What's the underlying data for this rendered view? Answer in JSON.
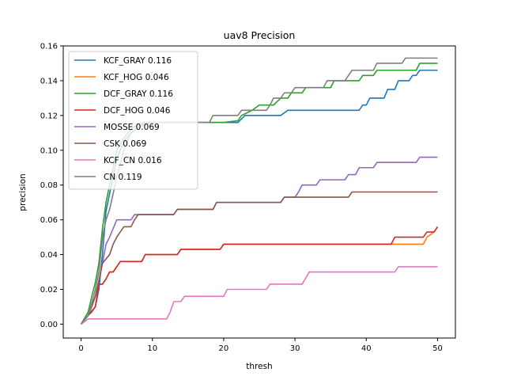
{
  "chart_data": {
    "type": "line",
    "title": "uav8 Precision",
    "xlabel": "thresh",
    "ylabel": "precision",
    "xlim": [
      -2.5,
      52.5
    ],
    "ylim": [
      -0.008,
      0.16
    ],
    "xticks": [
      0,
      10,
      20,
      30,
      40,
      50
    ],
    "yticks": [
      0.0,
      0.02,
      0.04,
      0.06,
      0.08,
      0.1,
      0.12,
      0.14,
      0.16
    ],
    "xtick_labels": [
      "0",
      "10",
      "20",
      "30",
      "40",
      "50"
    ],
    "ytick_labels": [
      "0.00",
      "0.02",
      "0.04",
      "0.06",
      "0.08",
      "0.10",
      "0.12",
      "0.14",
      "0.16"
    ],
    "grid": false,
    "legend_position": "top-left",
    "series": [
      {
        "name": "KCF_GRAY 0.116",
        "color": "#1f77b4",
        "points": [
          [
            0,
            0
          ],
          [
            1,
            0.005
          ],
          [
            1.5,
            0.007
          ],
          [
            2,
            0.01
          ],
          [
            2.5,
            0.02
          ],
          [
            3,
            0.04
          ],
          [
            3.5,
            0.065
          ],
          [
            4,
            0.075
          ],
          [
            4.5,
            0.085
          ],
          [
            5,
            0.095
          ],
          [
            6,
            0.105
          ],
          [
            7,
            0.11
          ],
          [
            8,
            0.113
          ],
          [
            9,
            0.115
          ],
          [
            10,
            0.116
          ],
          [
            22,
            0.116
          ],
          [
            23,
            0.12
          ],
          [
            28,
            0.12
          ],
          [
            29,
            0.123
          ],
          [
            39,
            0.123
          ],
          [
            39.5,
            0.126
          ],
          [
            40,
            0.126
          ],
          [
            40.5,
            0.13
          ],
          [
            42.5,
            0.13
          ],
          [
            43,
            0.135
          ],
          [
            44,
            0.135
          ],
          [
            44.5,
            0.14
          ],
          [
            46,
            0.14
          ],
          [
            46.5,
            0.143
          ],
          [
            47,
            0.143
          ],
          [
            47.5,
            0.146
          ],
          [
            50,
            0.146
          ]
        ]
      },
      {
        "name": "KCF_HOG 0.046",
        "color": "#ff7f0e",
        "points": [
          [
            0,
            0
          ],
          [
            1,
            0.005
          ],
          [
            2,
            0.01
          ],
          [
            2.5,
            0.023
          ],
          [
            3,
            0.023
          ],
          [
            3.5,
            0.026
          ],
          [
            4,
            0.03
          ],
          [
            4.5,
            0.03
          ],
          [
            5,
            0.033
          ],
          [
            5.5,
            0.036
          ],
          [
            8.5,
            0.036
          ],
          [
            9,
            0.04
          ],
          [
            13.5,
            0.04
          ],
          [
            14,
            0.043
          ],
          [
            19.5,
            0.043
          ],
          [
            20,
            0.046
          ],
          [
            48,
            0.046
          ],
          [
            48.5,
            0.05
          ],
          [
            49.5,
            0.053
          ],
          [
            50,
            0.056
          ]
        ]
      },
      {
        "name": "DCF_GRAY 0.116",
        "color": "#2ca02c",
        "points": [
          [
            0,
            0
          ],
          [
            1,
            0.007
          ],
          [
            1.5,
            0.016
          ],
          [
            2,
            0.024
          ],
          [
            2.5,
            0.035
          ],
          [
            3,
            0.055
          ],
          [
            3.5,
            0.07
          ],
          [
            4,
            0.08
          ],
          [
            4.5,
            0.09
          ],
          [
            5,
            0.1
          ],
          [
            6,
            0.107
          ],
          [
            7,
            0.112
          ],
          [
            8,
            0.115
          ],
          [
            9,
            0.116
          ],
          [
            20,
            0.116
          ],
          [
            22,
            0.117
          ],
          [
            22.5,
            0.12
          ],
          [
            24,
            0.123
          ],
          [
            25,
            0.126
          ],
          [
            27,
            0.126
          ],
          [
            28,
            0.13
          ],
          [
            29,
            0.13
          ],
          [
            29.5,
            0.133
          ],
          [
            31,
            0.133
          ],
          [
            31.5,
            0.136
          ],
          [
            35,
            0.136
          ],
          [
            35.5,
            0.14
          ],
          [
            39,
            0.14
          ],
          [
            39.5,
            0.143
          ],
          [
            41,
            0.143
          ],
          [
            41.5,
            0.146
          ],
          [
            47,
            0.146
          ],
          [
            47.5,
            0.15
          ],
          [
            50,
            0.15
          ]
        ]
      },
      {
        "name": "DCF_HOG 0.046",
        "color": "#d62728",
        "points": [
          [
            0,
            0
          ],
          [
            1,
            0.005
          ],
          [
            2,
            0.01
          ],
          [
            2.5,
            0.023
          ],
          [
            3,
            0.023
          ],
          [
            3.5,
            0.026
          ],
          [
            4,
            0.03
          ],
          [
            4.5,
            0.03
          ],
          [
            5,
            0.033
          ],
          [
            5.5,
            0.036
          ],
          [
            8.5,
            0.036
          ],
          [
            9,
            0.04
          ],
          [
            13.5,
            0.04
          ],
          [
            14,
            0.043
          ],
          [
            19.5,
            0.043
          ],
          [
            20,
            0.046
          ],
          [
            43.5,
            0.046
          ],
          [
            44,
            0.05
          ],
          [
            48,
            0.05
          ],
          [
            48.5,
            0.053
          ],
          [
            49.5,
            0.053
          ],
          [
            50,
            0.056
          ]
        ]
      },
      {
        "name": "MOSSE 0.069",
        "color": "#9467bd",
        "points": [
          [
            0,
            0
          ],
          [
            1,
            0.005
          ],
          [
            1.5,
            0.01
          ],
          [
            2,
            0.016
          ],
          [
            2.5,
            0.025
          ],
          [
            3,
            0.035
          ],
          [
            3.5,
            0.046
          ],
          [
            4,
            0.05
          ],
          [
            4.5,
            0.055
          ],
          [
            5,
            0.06
          ],
          [
            7,
            0.06
          ],
          [
            7.5,
            0.063
          ],
          [
            13,
            0.063
          ],
          [
            13.5,
            0.066
          ],
          [
            18.5,
            0.066
          ],
          [
            19,
            0.07
          ],
          [
            28,
            0.07
          ],
          [
            28.5,
            0.073
          ],
          [
            30,
            0.073
          ],
          [
            30.5,
            0.076
          ],
          [
            31,
            0.08
          ],
          [
            33,
            0.08
          ],
          [
            33.5,
            0.083
          ],
          [
            37,
            0.083
          ],
          [
            37.5,
            0.086
          ],
          [
            38.5,
            0.086
          ],
          [
            39,
            0.09
          ],
          [
            41,
            0.09
          ],
          [
            41.5,
            0.093
          ],
          [
            47,
            0.093
          ],
          [
            47.5,
            0.096
          ],
          [
            50,
            0.096
          ]
        ]
      },
      {
        "name": "CSK 0.069",
        "color": "#8c564b",
        "points": [
          [
            0,
            0
          ],
          [
            1,
            0.005
          ],
          [
            2,
            0.016
          ],
          [
            2.5,
            0.025
          ],
          [
            3,
            0.035
          ],
          [
            4,
            0.04
          ],
          [
            4.5,
            0.046
          ],
          [
            5,
            0.05
          ],
          [
            6,
            0.056
          ],
          [
            7,
            0.056
          ],
          [
            7.5,
            0.06
          ],
          [
            8,
            0.063
          ],
          [
            13,
            0.063
          ],
          [
            13.5,
            0.066
          ],
          [
            18.5,
            0.066
          ],
          [
            19,
            0.07
          ],
          [
            28,
            0.07
          ],
          [
            28.5,
            0.073
          ],
          [
            37.5,
            0.073
          ],
          [
            38,
            0.076
          ],
          [
            50,
            0.076
          ]
        ]
      },
      {
        "name": "KCF_CN 0.016",
        "color": "#e377c2",
        "points": [
          [
            0,
            0
          ],
          [
            1,
            0.003
          ],
          [
            12,
            0.003
          ],
          [
            12.5,
            0.007
          ],
          [
            13,
            0.013
          ],
          [
            14,
            0.013
          ],
          [
            14.5,
            0.016
          ],
          [
            20,
            0.016
          ],
          [
            20.5,
            0.02
          ],
          [
            26,
            0.02
          ],
          [
            26.5,
            0.023
          ],
          [
            31,
            0.023
          ],
          [
            32,
            0.03
          ],
          [
            44,
            0.03
          ],
          [
            44.5,
            0.033
          ],
          [
            50,
            0.033
          ]
        ]
      },
      {
        "name": "CN 0.119",
        "color": "#7f7f7f",
        "points": [
          [
            0,
            0
          ],
          [
            1,
            0.005
          ],
          [
            1.5,
            0.012
          ],
          [
            2,
            0.02
          ],
          [
            2.5,
            0.03
          ],
          [
            3,
            0.05
          ],
          [
            3.5,
            0.06
          ],
          [
            4,
            0.066
          ],
          [
            4.5,
            0.075
          ],
          [
            5,
            0.085
          ],
          [
            6,
            0.1
          ],
          [
            7,
            0.11
          ],
          [
            8,
            0.113
          ],
          [
            9,
            0.116
          ],
          [
            18,
            0.116
          ],
          [
            18.5,
            0.12
          ],
          [
            22,
            0.12
          ],
          [
            22.5,
            0.123
          ],
          [
            26,
            0.123
          ],
          [
            26.5,
            0.126
          ],
          [
            27,
            0.13
          ],
          [
            28,
            0.13
          ],
          [
            28.5,
            0.133
          ],
          [
            29.5,
            0.133
          ],
          [
            30,
            0.136
          ],
          [
            34,
            0.136
          ],
          [
            34.5,
            0.14
          ],
          [
            37,
            0.14
          ],
          [
            37.5,
            0.143
          ],
          [
            38,
            0.146
          ],
          [
            41,
            0.146
          ],
          [
            41.5,
            0.15
          ],
          [
            45,
            0.15
          ],
          [
            45.5,
            0.153
          ],
          [
            50,
            0.153
          ]
        ]
      }
    ]
  }
}
